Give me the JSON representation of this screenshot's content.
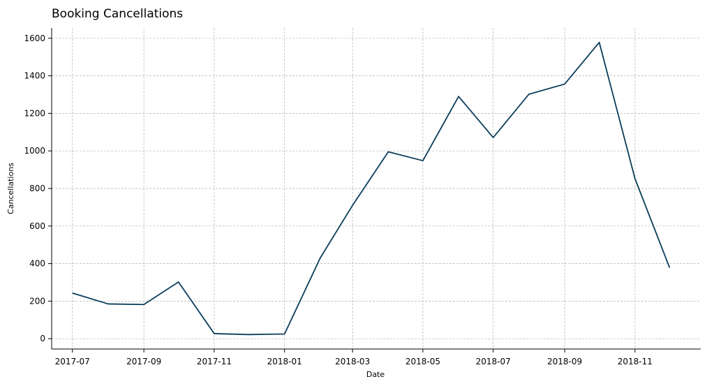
{
  "chart_data": {
    "type": "line",
    "title": "Booking Cancellations",
    "xlabel": "Date",
    "ylabel": "Cancellations",
    "x_tick_labels": [
      "2017-07",
      "2017-09",
      "2017-11",
      "2018-01",
      "2018-03",
      "2018-05",
      "2018-07",
      "2018-09",
      "2018-11"
    ],
    "y_ticks": [
      0,
      200,
      400,
      600,
      800,
      1000,
      1200,
      1400,
      1600
    ],
    "ylim": [
      -55,
      1655
    ],
    "xlim": [
      "2017-06-13",
      "2018-12-28"
    ],
    "grid": true,
    "line_color": "#0b3d5a",
    "series": [
      {
        "x": [
          "2017-07-01",
          "2017-08-01",
          "2017-09-01",
          "2017-10-01",
          "2017-11-01",
          "2017-12-01",
          "2018-01-01",
          "2018-02-01",
          "2018-03-01",
          "2018-04-01",
          "2018-05-01",
          "2018-06-01",
          "2018-07-01",
          "2018-08-01",
          "2018-09-01",
          "2018-10-01",
          "2018-11-01",
          "2018-12-01"
        ],
        "values": [
          243,
          185,
          182,
          302,
          27,
          22,
          25,
          430,
          710,
          995,
          948,
          1290,
          1071,
          1302,
          1356,
          1578,
          852,
          378
        ]
      }
    ]
  }
}
